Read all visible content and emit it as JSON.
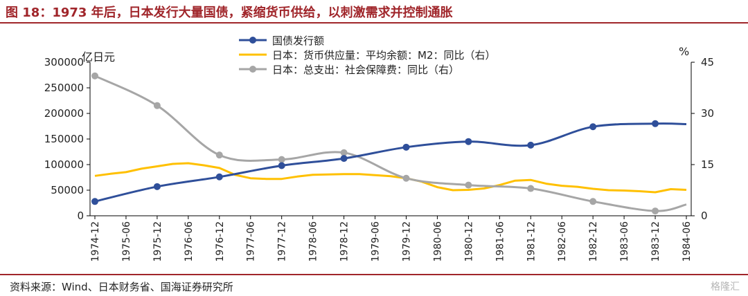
{
  "header": {
    "title": "图 18：1973 年后，日本发行大量国债，紧缩货币供给，以刺激需求并控制通胀"
  },
  "footer": {
    "source": "资料来源：Wind、日本财务省、国海证券研究所",
    "watermark": "格隆汇"
  },
  "chart_data": {
    "type": "line",
    "title": "",
    "ylabel_left": "亿日元",
    "ylabel_right": "%",
    "ylim_left": [
      0,
      300000
    ],
    "ylim_right": [
      0,
      45
    ],
    "yticks_left": [
      "0",
      "50000",
      "100000",
      "150000",
      "200000",
      "250000",
      "300000"
    ],
    "yticks_right": [
      "0",
      "15",
      "30",
      "45"
    ],
    "xticks": [
      "1974-12",
      "1975-06",
      "1975-12",
      "1976-06",
      "1976-12",
      "1977-06",
      "1977-12",
      "1978-06",
      "1978-12",
      "1979-06",
      "1979-12",
      "1980-06",
      "1980-12",
      "1981-06",
      "1981-12",
      "1982-06",
      "1982-12",
      "1983-06",
      "1983-12",
      "1984-06"
    ],
    "legend_position": "top",
    "grid": false,
    "series": [
      {
        "name": "国债发行额",
        "axis": "left",
        "color": "#2f4f9a",
        "marker": "circle",
        "x": [
          "1974-12",
          "1975-12",
          "1976-12",
          "1977-12",
          "1978-12",
          "1979-12",
          "1980-12",
          "1981-12",
          "1982-12",
          "1983-12",
          "1984-06"
        ],
        "y": [
          28000,
          57000,
          76000,
          98000,
          112000,
          134000,
          145000,
          138000,
          174000,
          180000,
          179000
        ],
        "marked": [
          true,
          true,
          true,
          true,
          true,
          true,
          true,
          true,
          true,
          true,
          false
        ]
      },
      {
        "name": "日本：货币供应量：平均余额：M2：同比（右）",
        "axis": "right",
        "color": "#ffc000",
        "marker": "none",
        "x": [
          "1974-12",
          "1975-03",
          "1975-06",
          "1975-09",
          "1975-12",
          "1976-03",
          "1976-06",
          "1976-09",
          "1976-12",
          "1977-03",
          "1977-06",
          "1977-09",
          "1977-12",
          "1978-03",
          "1978-06",
          "1978-09",
          "1978-12",
          "1979-03",
          "1979-06",
          "1979-09",
          "1979-12",
          "1980-03",
          "1980-06",
          "1980-09",
          "1980-12",
          "1981-03",
          "1981-06",
          "1981-09",
          "1981-12",
          "1982-03",
          "1982-06",
          "1982-09",
          "1982-12",
          "1983-03",
          "1983-06",
          "1983-09",
          "1983-12",
          "1984-03",
          "1984-06"
        ],
        "y": [
          11.7,
          12.3,
          12.8,
          13.8,
          14.5,
          15.2,
          15.4,
          14.8,
          14.0,
          12.0,
          11.0,
          10.8,
          10.8,
          11.5,
          12.0,
          12.1,
          12.2,
          12.2,
          11.9,
          11.6,
          11.0,
          10.0,
          8.4,
          7.5,
          7.6,
          8.0,
          9.0,
          10.3,
          10.5,
          9.4,
          8.8,
          8.5,
          7.9,
          7.5,
          7.4,
          7.2,
          6.9,
          7.8,
          7.6
        ],
        "marked": []
      },
      {
        "name": "日本：总支出：社会保障费：同比（右）",
        "axis": "right",
        "color": "#a6a6a6",
        "marker": "circle",
        "x": [
          "1974-12",
          "1975-12",
          "1976-12",
          "1977-12",
          "1978-12",
          "1979-12",
          "1980-12",
          "1981-12",
          "1982-12",
          "1983-12",
          "1984-06"
        ],
        "y": [
          41.0,
          32.3,
          17.8,
          16.5,
          18.5,
          11.0,
          9.0,
          8.0,
          4.2,
          1.4,
          3.3
        ],
        "marked": [
          true,
          true,
          true,
          true,
          true,
          true,
          true,
          true,
          true,
          true,
          false
        ]
      }
    ]
  }
}
